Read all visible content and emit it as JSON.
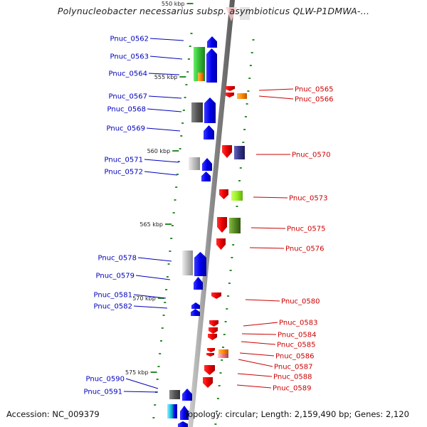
{
  "header": {
    "title": "Polynucleobacter necessarius subsp. asymbioticus QLW-P1DMWA-..."
  },
  "footer": {
    "accession": "Accession: NC_009379",
    "topology": "Topology: circular; Length: 2,159,490 bp; Genes: 2,120"
  },
  "colors": {
    "forward_label": "#0000bb",
    "reverse_label": "#cc0000",
    "backbone": "#8c8c8c",
    "tick": "#2e8b2e"
  },
  "scale_marks": [
    {
      "label": "550 kbp"
    },
    {
      "label": "555 kbp"
    },
    {
      "label": "560 kbp"
    },
    {
      "label": "565 kbp"
    },
    {
      "label": "570 kbp"
    },
    {
      "label": "575 kbp"
    }
  ],
  "forward_genes": [
    {
      "name": "Pnuc_0562",
      "feature_color": "#2a7d2a"
    },
    {
      "name": "Pnuc_0563",
      "feature_color": "#33bb33"
    },
    {
      "name": "Pnuc_0564",
      "feature_color": "#ff8800"
    },
    {
      "name": "Pnuc_0567",
      "feature_color": "#666666"
    },
    {
      "name": "Pnuc_0568",
      "feature_color": "#555555"
    },
    {
      "name": "Pnuc_0569",
      "feature_color": "#0000ee"
    },
    {
      "name": "Pnuc_0571",
      "feature_color": "#bbbbbb"
    },
    {
      "name": "Pnuc_0572",
      "feature_color": "#0000ee"
    },
    {
      "name": "Pnuc_0578",
      "feature_color": "#bbbbbb"
    },
    {
      "name": "Pnuc_0579",
      "feature_color": "#0000ee"
    },
    {
      "name": "Pnuc_0581",
      "feature_color": "#0000ee"
    },
    {
      "name": "Pnuc_0582",
      "feature_color": "#0000ee"
    },
    {
      "name": "Pnuc_0590",
      "feature_color": "#555555"
    },
    {
      "name": "Pnuc_0591",
      "feature_color": "#22ccee"
    }
  ],
  "reverse_genes": [
    {
      "name": "Pnuc_0565",
      "feature_color": "#ee0000"
    },
    {
      "name": "Pnuc_0566",
      "feature_color": "#ff8800"
    },
    {
      "name": "Pnuc_0570",
      "feature_color": "#333388"
    },
    {
      "name": "Pnuc_0573",
      "feature_color": "#99ee22"
    },
    {
      "name": "Pnuc_0575",
      "feature_color": "#558822"
    },
    {
      "name": "Pnuc_0576",
      "feature_color": "#ee0000"
    },
    {
      "name": "Pnuc_0580",
      "feature_color": "#ee0000"
    },
    {
      "name": "Pnuc_0583",
      "feature_color": "#ee0000"
    },
    {
      "name": "Pnuc_0584",
      "feature_color": "#ee0000"
    },
    {
      "name": "Pnuc_0585",
      "feature_color": "#ee0000"
    },
    {
      "name": "Pnuc_0586",
      "feature_color": "#ff8800"
    },
    {
      "name": "Pnuc_0587",
      "feature_color": "#ee7777"
    },
    {
      "name": "Pnuc_0588",
      "feature_color": "#ee0000"
    },
    {
      "name": "Pnuc_0589",
      "feature_color": "#ee0000"
    }
  ]
}
